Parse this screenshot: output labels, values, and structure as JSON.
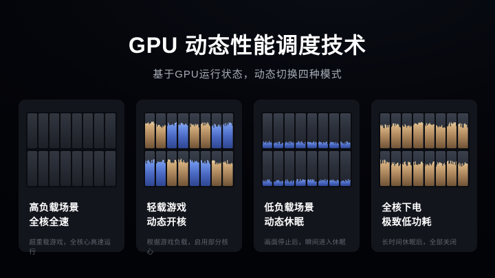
{
  "page": {
    "title": "GPU 动态性能调度技术",
    "subtitle": "基于GPU运行状态，动态切换四种模式"
  },
  "colors": {
    "background": "#04050a",
    "card_bg": "#13151c",
    "cell_idle_top": "#3a404c",
    "cell_idle_bottom": "#20232c",
    "gold_tip": "#eed9ae",
    "gold_top": "#d4ae7d",
    "gold_mid": "#a8835a",
    "gold_bottom": "#6f5336",
    "blue_tip": "#9cb4f4",
    "blue_top": "#6e93e8",
    "blue_mid": "#4a68c2",
    "blue_bottom": "#2e4690"
  },
  "cards": [
    {
      "title_line1": "高负载场景",
      "title_line2": "全核全速",
      "caption": "超重载游戏，全核心高速运行",
      "grid": {
        "rows": 2,
        "cols": 8,
        "fill": 0,
        "pattern": [
          [
            "none",
            "none",
            "none",
            "none",
            "none",
            "none",
            "none",
            "none"
          ],
          [
            "none",
            "none",
            "none",
            "none",
            "none",
            "none",
            "none",
            "none"
          ]
        ]
      }
    },
    {
      "title_line1": "轻载游戏",
      "title_line2": "动态开核",
      "caption": "根据游戏负载，启用部分核心",
      "grid": {
        "rows": 2,
        "cols": 8,
        "fill": 0.74,
        "pattern": [
          [
            "gold",
            "gold",
            "blue",
            "blue",
            "gold",
            "gold",
            "blue",
            "blue"
          ],
          [
            "blue",
            "blue",
            "gold",
            "gold",
            "blue",
            "blue",
            "gold",
            "gold"
          ]
        ]
      }
    },
    {
      "title_line1": "低负载场景",
      "title_line2": "动态休眠",
      "caption": "画面停止后，瞬间进入休眠",
      "grid": {
        "rows": 2,
        "cols": 8,
        "fill": 0.2,
        "pattern": [
          [
            "blue",
            "blue",
            "blue",
            "blue",
            "blue",
            "blue",
            "blue",
            "blue"
          ],
          [
            "blue",
            "blue",
            "blue",
            "blue",
            "blue",
            "blue",
            "blue",
            "blue"
          ]
        ]
      }
    },
    {
      "title_line1": "全核下电",
      "title_line2": "极致低功耗",
      "caption": "长时间休眠后，全部关闭",
      "grid": {
        "rows": 2,
        "cols": 8,
        "fill": 0.72,
        "pattern": [
          [
            "gold",
            "gold",
            "gold",
            "gold",
            "gold",
            "gold",
            "gold",
            "gold"
          ],
          [
            "gold",
            "gold",
            "gold",
            "gold",
            "gold",
            "gold",
            "gold",
            "gold"
          ]
        ]
      }
    }
  ]
}
